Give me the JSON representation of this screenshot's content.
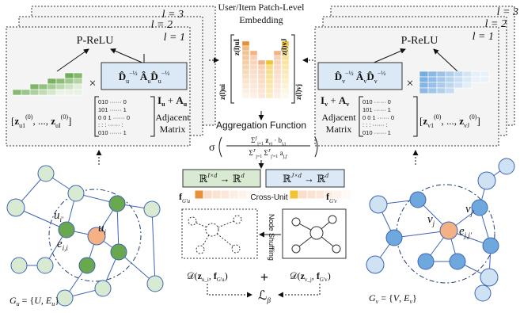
{
  "header": {
    "center_title_line1": "User/Item  Patch-Level",
    "center_title_line2": "Embedding"
  },
  "left_panel": {
    "layer_labels": [
      "l = 3",
      "l = 2",
      "l = 1"
    ],
    "activation": "P-ReLU",
    "norm_matrix": "D̂u^(-1/2) Âu D̂u^(-1/2)",
    "times": "×",
    "identity_plus_adj": "Iu + Au",
    "adjacent": "Adjacent",
    "matrix": "Matrix",
    "embedding_list": "[z_u1^(0), ..., z_uI^(0)]",
    "binary_rows": [
      "010 ······ 0",
      "101 ······ 1",
      "0 0 1 ······ 0",
      ": :  :  ······ :",
      "010 ······ 1"
    ]
  },
  "right_panel": {
    "layer_labels": [
      "l = 3",
      "l = 2",
      "l = 1"
    ],
    "activation": "P-ReLU",
    "norm_matrix": "D̂v^(-1/2) Âv D̂v^(-1/2)",
    "times": "×",
    "identity_plus_adj": "Iv + Av",
    "adjacent": "Adjacent",
    "matrix": "Matrix",
    "embedding_list": "[z_v1^(0), ..., z_vJ^(0)]",
    "binary_rows": [
      "010 ······ 0",
      "101 ······ 1",
      "0 0 1 ······ 0",
      ": :  :  ······ :",
      "010 ······ 1"
    ]
  },
  "center": {
    "aggregation_title": "Aggregation Function",
    "aggregation_formula": "σ( Σ z_vj · b_j,j / Σ a_j,j' )",
    "map_left": "ℝ^(I×d) → ℝ^d",
    "map_right": "ℝ^(J×d) → ℝ^d",
    "f_left": "f_G'u",
    "f_right": "f_G'v",
    "cross_unit": "Cross-Unit",
    "node_shuffling": "Node Shuffling",
    "d_left": "𝒟(z_ui, f_G'u)",
    "d_right": "𝒟(z_vj, f_G'v)",
    "plus": "+",
    "loss": "ℒβ",
    "patch_labels_left": [
      "z(l)ui",
      "z(l)uI"
    ],
    "patch_labels_right": [
      "z(l)vj",
      "z(l)vJ"
    ]
  },
  "left_graph": {
    "node_labels": {
      "u_i": "u_i",
      "u_i_prime": "u_i'",
      "e_ii": "e_i,i"
    },
    "graph_label": "G_u = {U, E_u}"
  },
  "right_graph": {
    "node_labels": {
      "v_j": "v_j",
      "v_j_prime": "v_j'",
      "e_jj": "e_j,j'"
    },
    "graph_label": "G_v = {V, E_v}"
  },
  "colors": {
    "user_green": "#6aa84f",
    "user_green_light": "#d9ead3",
    "item_blue": "#6fa8dc",
    "item_blue_light": "#cfe2f3",
    "orange": "#e69138",
    "yellow": "#f1c232",
    "peach": "#f4b183",
    "panel_fill": "#f4f4f4",
    "box_blue": "#dbe8f5"
  }
}
